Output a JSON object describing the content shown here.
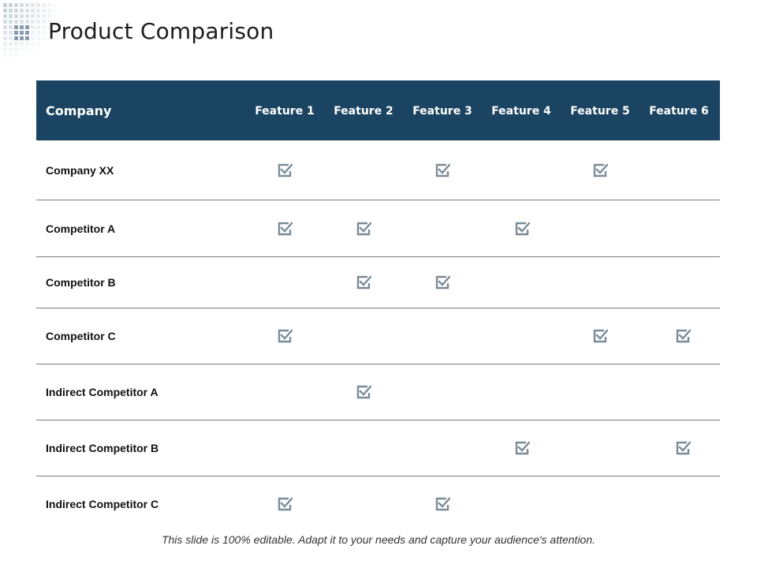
{
  "slide": {
    "title": "Product Comparison",
    "footer": "This slide is 100% editable.  Adapt it to your needs and capture your audience's attention."
  },
  "colors": {
    "header_bg": "#1b4462",
    "header_text": "#ffffff",
    "check": "#7b8c97",
    "divider": "#7a7a7a",
    "deco": "#8fa6b8"
  },
  "icons": {
    "check": "checked-box-icon",
    "deco": "dot-grid-decoration"
  },
  "table": {
    "header_company": "Company",
    "features": [
      "Feature 1",
      "Feature 2",
      "Feature 3",
      "Feature 4",
      "Feature 5",
      "Feature 6"
    ],
    "rows": [
      {
        "name": "Company XX",
        "checks": [
          true,
          false,
          true,
          false,
          true,
          false
        ]
      },
      {
        "name": "Competitor A",
        "checks": [
          true,
          true,
          false,
          true,
          false,
          false
        ]
      },
      {
        "name": "Competitor B",
        "checks": [
          false,
          true,
          true,
          false,
          false,
          false
        ]
      },
      {
        "name": "Competitor C",
        "checks": [
          true,
          false,
          false,
          false,
          true,
          true
        ]
      },
      {
        "name": "Indirect Competitor A",
        "checks": [
          false,
          true,
          false,
          false,
          false,
          false
        ]
      },
      {
        "name": "Indirect Competitor B",
        "checks": [
          false,
          false,
          false,
          true,
          false,
          true
        ]
      },
      {
        "name": "Indirect Competitor C",
        "checks": [
          true,
          false,
          true,
          false,
          false,
          false
        ]
      }
    ]
  }
}
